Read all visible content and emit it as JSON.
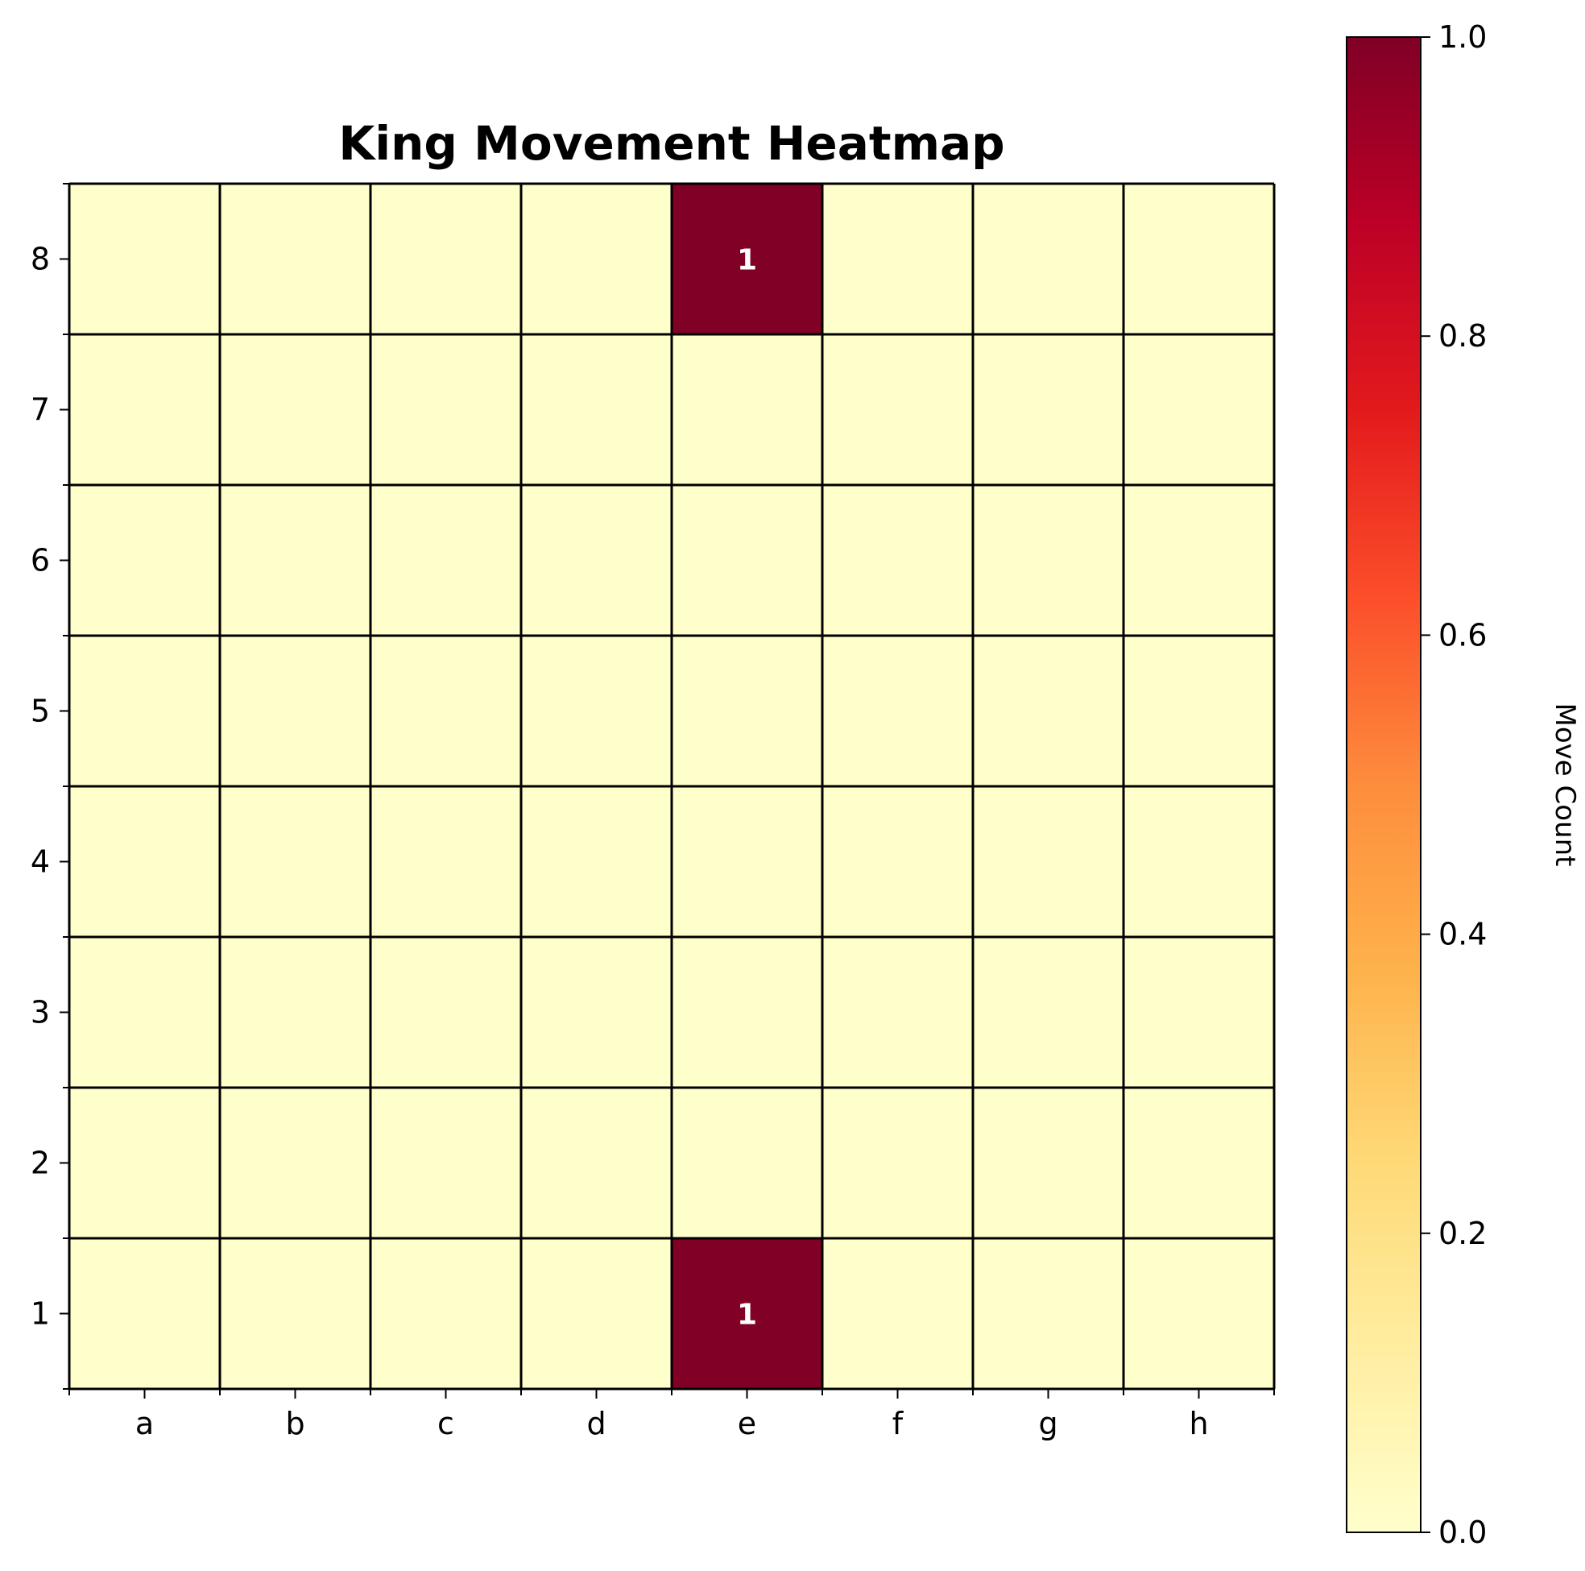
{
  "chart_data": {
    "type": "heatmap",
    "title": "King Movement Heatmap",
    "x_categories": [
      "a",
      "b",
      "c",
      "d",
      "e",
      "f",
      "g",
      "h"
    ],
    "y_categories": [
      "8",
      "7",
      "6",
      "5",
      "4",
      "3",
      "2",
      "1"
    ],
    "values": [
      [
        0,
        0,
        0,
        0,
        1,
        0,
        0,
        0
      ],
      [
        0,
        0,
        0,
        0,
        0,
        0,
        0,
        0
      ],
      [
        0,
        0,
        0,
        0,
        0,
        0,
        0,
        0
      ],
      [
        0,
        0,
        0,
        0,
        0,
        0,
        0,
        0
      ],
      [
        0,
        0,
        0,
        0,
        0,
        0,
        0,
        0
      ],
      [
        0,
        0,
        0,
        0,
        0,
        0,
        0,
        0
      ],
      [
        0,
        0,
        0,
        0,
        0,
        0,
        0,
        0
      ],
      [
        0,
        0,
        0,
        0,
        1,
        0,
        0,
        0
      ]
    ],
    "annotations": [
      {
        "file": "e",
        "rank": "8",
        "text": "1"
      },
      {
        "file": "e",
        "rank": "1",
        "text": "1"
      }
    ],
    "colorbar": {
      "label": "Move Count",
      "range": [
        0.0,
        1.0
      ],
      "ticks": [
        "0.0",
        "0.2",
        "0.4",
        "0.6",
        "0.8",
        "1.0"
      ],
      "colormap": "YlOrRd",
      "low_color": "#ffffcc",
      "high_color": "#800026"
    },
    "grid": true
  }
}
